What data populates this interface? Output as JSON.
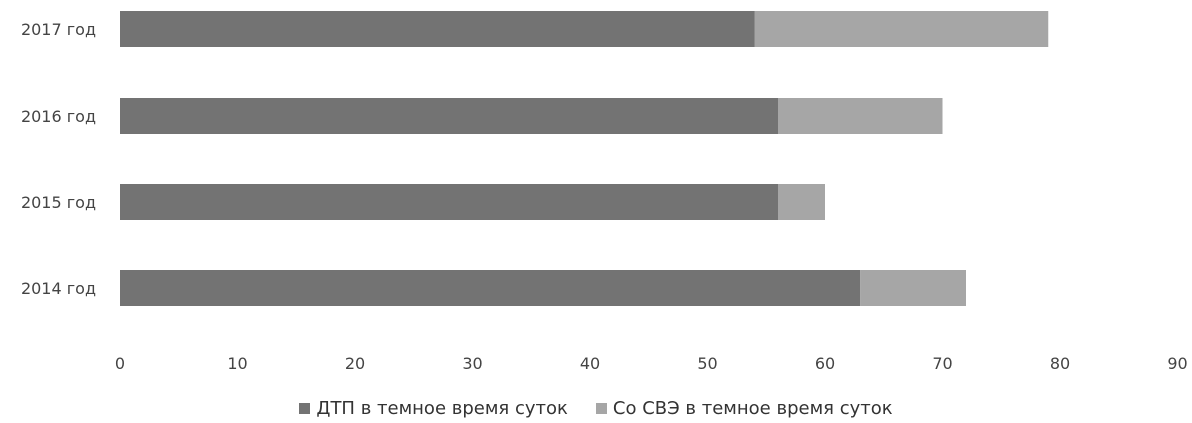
{
  "chart_data": {
    "type": "bar",
    "orientation": "horizontal",
    "stacked": true,
    "categories": [
      "2014 год",
      "2015 год",
      "2016 год",
      "2017 год"
    ],
    "series": [
      {
        "name": "ДТП в темное время суток",
        "values": [
          63,
          56,
          56,
          54
        ],
        "color": "#737373"
      },
      {
        "name": "Со СВЭ в темное время суток",
        "values": [
          9,
          4,
          14,
          25
        ],
        "color": "#a6a6a6"
      }
    ],
    "title": "",
    "xlabel": "",
    "ylabel": "",
    "xlim": [
      0,
      90
    ],
    "xticks": [
      "0",
      "10",
      "20",
      "30",
      "40",
      "50",
      "60",
      "70",
      "80",
      "90"
    ],
    "grid": false,
    "legend_position": "bottom"
  }
}
